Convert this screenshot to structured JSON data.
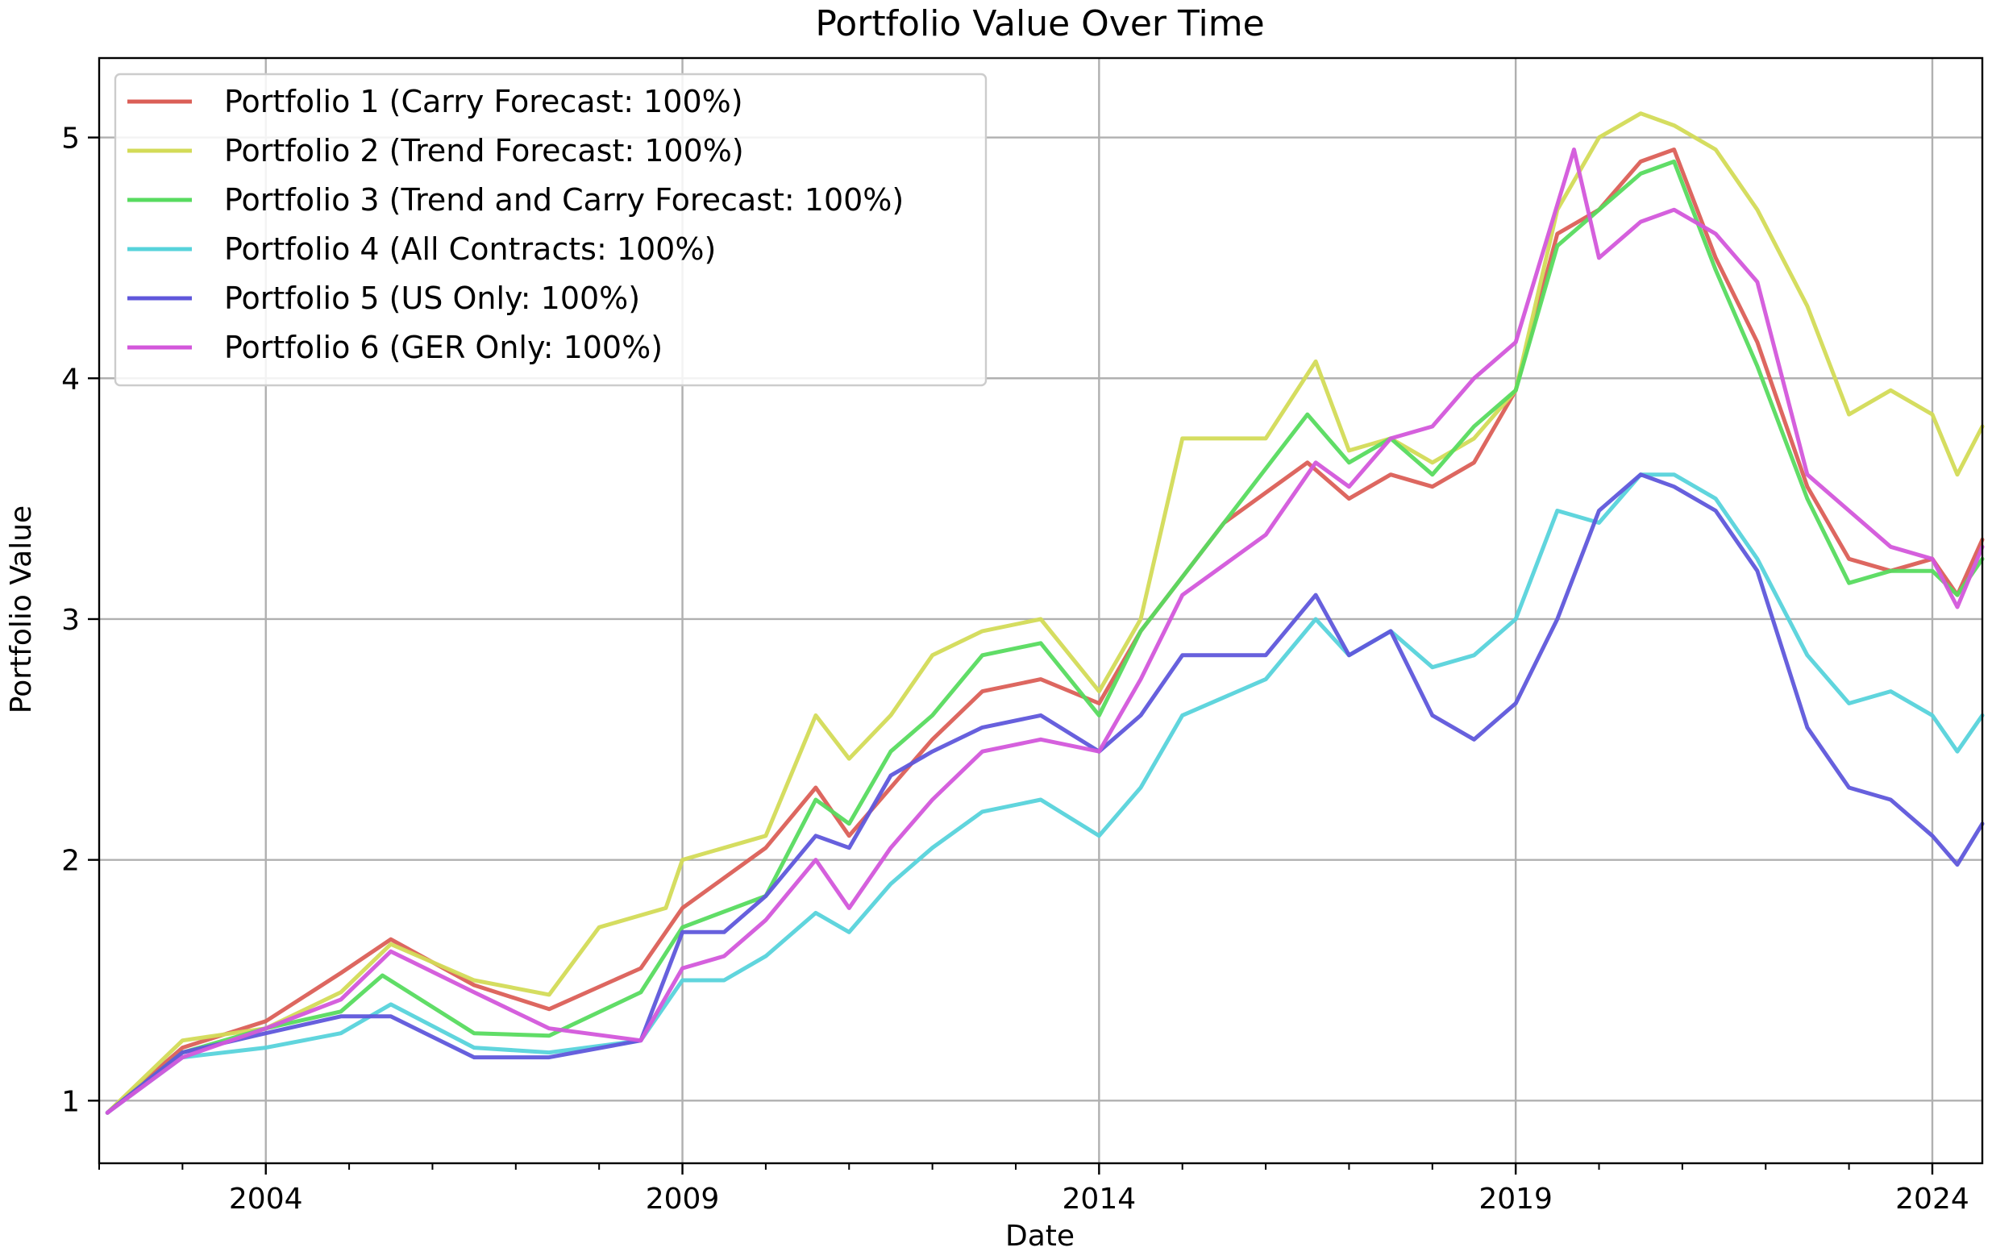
{
  "chart_data": {
    "type": "line",
    "title": "Portfolio Value Over Time",
    "xlabel": "Date",
    "ylabel": "Portfolio Value",
    "xlim": [
      2002.0,
      2024.6
    ],
    "ylim": [
      0.74,
      5.33
    ],
    "x_ticks": [
      2004,
      2009,
      2014,
      2019,
      2024
    ],
    "x_tick_labels": [
      "2004",
      "2009",
      "2014",
      "2019",
      "2024"
    ],
    "y_ticks": [
      1,
      2,
      3,
      4,
      5
    ],
    "y_tick_labels": [
      "1",
      "2",
      "3",
      "4",
      "5"
    ],
    "grid": true,
    "legend_position": "top-left",
    "series": [
      {
        "name": "Portfolio 1 (Carry Forecast: 100%)",
        "color": "#db5f57",
        "x": [
          2002.1,
          2003.0,
          2004.0,
          2004.9,
          2005.5,
          2006.5,
          2007.4,
          2008.5,
          2009.0,
          2010.0,
          2010.6,
          2011.0,
          2011.5,
          2012.0,
          2012.6,
          2013.3,
          2014.0,
          2014.5,
          2015.5,
          2016.5,
          2017.0,
          2017.5,
          2018.0,
          2018.5,
          2019.0,
          2019.5,
          2020.0,
          2020.5,
          2020.9,
          2021.4,
          2021.9,
          2022.5,
          2023.0,
          2023.5,
          2024.0,
          2024.3,
          2024.6
        ],
        "y": [
          0.95,
          1.22,
          1.33,
          1.53,
          1.67,
          1.48,
          1.38,
          1.55,
          1.8,
          2.05,
          2.3,
          2.1,
          2.3,
          2.5,
          2.7,
          2.75,
          2.65,
          2.95,
          3.4,
          3.65,
          3.5,
          3.6,
          3.55,
          3.65,
          3.95,
          4.6,
          4.7,
          4.9,
          4.95,
          4.5,
          4.15,
          3.55,
          3.25,
          3.2,
          3.25,
          3.1,
          3.33
        ]
      },
      {
        "name": "Portfolio 2 (Trend Forecast: 100%)",
        "color": "#d3db57",
        "x": [
          2002.1,
          2003.0,
          2004.0,
          2004.9,
          2005.5,
          2006.5,
          2007.4,
          2008.0,
          2008.8,
          2009.0,
          2010.0,
          2010.6,
          2011.0,
          2011.5,
          2012.0,
          2012.6,
          2013.3,
          2014.0,
          2014.5,
          2015.0,
          2016.0,
          2016.6,
          2017.0,
          2017.5,
          2018.0,
          2018.5,
          2019.0,
          2019.5,
          2020.0,
          2020.5,
          2020.9,
          2021.4,
          2021.9,
          2022.5,
          2023.0,
          2023.5,
          2024.0,
          2024.3,
          2024.6
        ],
        "y": [
          0.95,
          1.25,
          1.3,
          1.45,
          1.65,
          1.5,
          1.44,
          1.72,
          1.8,
          2.0,
          2.1,
          2.6,
          2.42,
          2.6,
          2.85,
          2.95,
          3.0,
          2.7,
          3.0,
          3.75,
          3.75,
          4.07,
          3.7,
          3.75,
          3.65,
          3.75,
          3.95,
          4.7,
          5.0,
          5.1,
          5.05,
          4.95,
          4.7,
          4.3,
          3.85,
          3.95,
          3.85,
          3.6,
          3.8
        ]
      },
      {
        "name": "Portfolio 3 (Trend and Carry Forecast: 100%)",
        "color": "#57db5f",
        "x": [
          2002.1,
          2003.0,
          2004.0,
          2004.9,
          2005.4,
          2006.5,
          2007.4,
          2008.5,
          2009.0,
          2010.0,
          2010.6,
          2011.0,
          2011.5,
          2012.0,
          2012.6,
          2013.3,
          2014.0,
          2014.5,
          2015.5,
          2016.5,
          2017.0,
          2017.5,
          2018.0,
          2018.5,
          2019.0,
          2019.5,
          2020.0,
          2020.5,
          2020.9,
          2021.4,
          2021.9,
          2022.5,
          2023.0,
          2023.5,
          2024.0,
          2024.3,
          2024.6
        ],
        "y": [
          0.95,
          1.2,
          1.3,
          1.37,
          1.52,
          1.28,
          1.27,
          1.45,
          1.72,
          1.85,
          2.25,
          2.15,
          2.45,
          2.6,
          2.85,
          2.9,
          2.6,
          2.95,
          3.4,
          3.85,
          3.65,
          3.75,
          3.6,
          3.8,
          3.95,
          4.55,
          4.7,
          4.85,
          4.9,
          4.45,
          4.05,
          3.5,
          3.15,
          3.2,
          3.2,
          3.1,
          3.25
        ]
      },
      {
        "name": "Portfolio 4 (All Contracts: 100%)",
        "color": "#57d3db",
        "x": [
          2002.1,
          2003.0,
          2004.0,
          2004.9,
          2005.5,
          2006.5,
          2007.4,
          2008.5,
          2009.0,
          2009.5,
          2010.0,
          2010.6,
          2011.0,
          2011.5,
          2012.0,
          2012.6,
          2013.3,
          2014.0,
          2014.5,
          2015.0,
          2016.0,
          2016.6,
          2017.0,
          2017.5,
          2018.0,
          2018.5,
          2019.0,
          2019.5,
          2020.0,
          2020.5,
          2020.9,
          2021.4,
          2021.9,
          2022.5,
          2023.0,
          2023.5,
          2024.0,
          2024.3,
          2024.6
        ],
        "y": [
          0.95,
          1.18,
          1.22,
          1.28,
          1.4,
          1.22,
          1.2,
          1.25,
          1.5,
          1.5,
          1.6,
          1.78,
          1.7,
          1.9,
          2.05,
          2.2,
          2.25,
          2.1,
          2.3,
          2.6,
          2.75,
          3.0,
          2.85,
          2.95,
          2.8,
          2.85,
          3.0,
          3.45,
          3.4,
          3.6,
          3.6,
          3.5,
          3.25,
          2.85,
          2.65,
          2.7,
          2.6,
          2.45,
          2.6
        ]
      },
      {
        "name": "Portfolio 5 (US Only: 100%)",
        "color": "#5f57db",
        "x": [
          2002.1,
          2003.0,
          2004.0,
          2004.9,
          2005.5,
          2006.5,
          2007.4,
          2008.5,
          2009.0,
          2009.5,
          2010.0,
          2010.6,
          2011.0,
          2011.5,
          2012.0,
          2012.6,
          2013.3,
          2014.0,
          2014.5,
          2015.0,
          2016.0,
          2016.6,
          2017.0,
          2017.5,
          2018.0,
          2018.5,
          2019.0,
          2019.5,
          2020.0,
          2020.5,
          2020.9,
          2021.4,
          2021.9,
          2022.5,
          2023.0,
          2023.5,
          2024.0,
          2024.3,
          2024.6
        ],
        "y": [
          0.95,
          1.2,
          1.28,
          1.35,
          1.35,
          1.18,
          1.18,
          1.25,
          1.7,
          1.7,
          1.85,
          2.1,
          2.05,
          2.35,
          2.45,
          2.55,
          2.6,
          2.45,
          2.6,
          2.85,
          2.85,
          3.1,
          2.85,
          2.95,
          2.6,
          2.5,
          2.65,
          3.0,
          3.45,
          3.6,
          3.55,
          3.45,
          3.2,
          2.55,
          2.3,
          2.25,
          2.1,
          1.98,
          2.15
        ]
      },
      {
        "name": "Portfolio 6 (GER Only: 100%)",
        "color": "#d357db",
        "x": [
          2002.1,
          2003.0,
          2004.0,
          2004.9,
          2005.5,
          2006.5,
          2007.4,
          2008.5,
          2009.0,
          2009.5,
          2010.0,
          2010.6,
          2011.0,
          2011.5,
          2012.0,
          2012.6,
          2013.3,
          2014.0,
          2014.5,
          2015.0,
          2016.0,
          2016.6,
          2017.0,
          2017.5,
          2018.0,
          2018.5,
          2019.0,
          2019.7,
          2020.0,
          2020.5,
          2020.9,
          2021.4,
          2021.9,
          2022.5,
          2023.0,
          2023.5,
          2024.0,
          2024.3,
          2024.6
        ],
        "y": [
          0.95,
          1.18,
          1.3,
          1.42,
          1.62,
          1.45,
          1.3,
          1.25,
          1.55,
          1.6,
          1.75,
          2.0,
          1.8,
          2.05,
          2.25,
          2.45,
          2.5,
          2.45,
          2.75,
          3.1,
          3.35,
          3.65,
          3.55,
          3.75,
          3.8,
          4.0,
          4.15,
          4.95,
          4.5,
          4.65,
          4.7,
          4.6,
          4.4,
          3.6,
          3.45,
          3.3,
          3.25,
          3.05,
          3.3
        ]
      }
    ]
  }
}
